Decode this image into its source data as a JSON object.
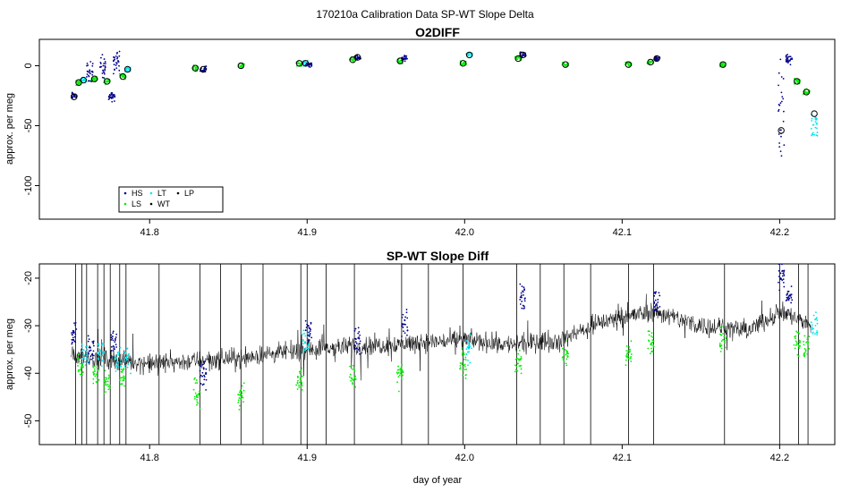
{
  "figure": {
    "title": "170210a   Calibration Data SP-WT Slope Delta",
    "xlabel": "day of year"
  },
  "colors": {
    "HS": "#00008b",
    "LS": "#00ee00",
    "LT": "#00e5ee",
    "WT": "#000000",
    "LP": "#000000",
    "mean_marker": "#000000",
    "trace": "#000000"
  },
  "chart_data": [
    {
      "type": "scatter",
      "title": "O2DIFF",
      "xlabel": "",
      "ylabel": "approx. per meg",
      "xlim": [
        41.73,
        42.235
      ],
      "ylim": [
        -128,
        22
      ],
      "xticks": [
        41.8,
        41.9,
        42.0,
        42.1,
        42.2
      ],
      "xtick_labels": [
        "41.8",
        "41.9",
        "42.0",
        "42.1",
        "42.2"
      ],
      "yticks": [
        0,
        -50,
        -100
      ],
      "ytick_labels": [
        "0",
        "-50",
        "-100"
      ],
      "grid": false,
      "legend": {
        "placement": "bottom-left",
        "entries": [
          {
            "label": "HS",
            "key": "HS"
          },
          {
            "label": "LS",
            "key": "LS"
          },
          {
            "label": "LT",
            "key": "LT"
          },
          {
            "label": "WT",
            "key": "WT"
          },
          {
            "label": "LP",
            "key": "LP"
          }
        ]
      },
      "clusters": [
        {
          "x": 41.752,
          "y": -25,
          "series": "HS",
          "spread": 4
        },
        {
          "x": 41.755,
          "y": -14,
          "series": "LS",
          "spread": 3
        },
        {
          "x": 41.758,
          "y": -12,
          "series": "LT",
          "spread": 3
        },
        {
          "x": 41.762,
          "y": -5,
          "series": "HS",
          "spread": 12
        },
        {
          "x": 41.765,
          "y": -11,
          "series": "LS",
          "spread": 3
        },
        {
          "x": 41.77,
          "y": -2,
          "series": "HS",
          "spread": 14
        },
        {
          "x": 41.773,
          "y": -13,
          "series": "LS",
          "spread": 3
        },
        {
          "x": 41.776,
          "y": -25,
          "series": "HS",
          "spread": 6
        },
        {
          "x": 41.779,
          "y": 3,
          "series": "HS",
          "spread": 14
        },
        {
          "x": 41.783,
          "y": -9,
          "series": "LS",
          "spread": 4
        },
        {
          "x": 41.786,
          "y": -3,
          "series": "LT",
          "spread": 3
        },
        {
          "x": 41.829,
          "y": -2,
          "series": "LS",
          "spread": 3
        },
        {
          "x": 41.834,
          "y": -3,
          "series": "HS",
          "spread": 4
        },
        {
          "x": 41.858,
          "y": 0,
          "series": "LS",
          "spread": 3
        },
        {
          "x": 41.895,
          "y": 2,
          "series": "LS",
          "spread": 3
        },
        {
          "x": 41.899,
          "y": 2,
          "series": "LT",
          "spread": 3
        },
        {
          "x": 41.901,
          "y": 1,
          "series": "HS",
          "spread": 3
        },
        {
          "x": 41.929,
          "y": 5,
          "series": "LS",
          "spread": 3
        },
        {
          "x": 41.932,
          "y": 7,
          "series": "HS",
          "spread": 3
        },
        {
          "x": 41.959,
          "y": 4,
          "series": "LS",
          "spread": 3
        },
        {
          "x": 41.962,
          "y": 6,
          "series": "HS",
          "spread": 3
        },
        {
          "x": 41.999,
          "y": 2,
          "series": "LS",
          "spread": 3
        },
        {
          "x": 42.003,
          "y": 9,
          "series": "LT",
          "spread": 3
        },
        {
          "x": 42.034,
          "y": 6,
          "series": "LS",
          "spread": 3
        },
        {
          "x": 42.037,
          "y": 9,
          "series": "HS",
          "spread": 3
        },
        {
          "x": 42.064,
          "y": 1,
          "series": "LS",
          "spread": 3
        },
        {
          "x": 42.104,
          "y": 1,
          "series": "LS",
          "spread": 3
        },
        {
          "x": 42.118,
          "y": 3,
          "series": "LS",
          "spread": 3
        },
        {
          "x": 42.122,
          "y": 6,
          "series": "HS",
          "spread": 3
        },
        {
          "x": 42.164,
          "y": 1,
          "series": "LS",
          "spread": 3
        },
        {
          "x": 42.201,
          "y": -40,
          "series": "HS",
          "spread": 70
        },
        {
          "x": 42.206,
          "y": 5,
          "series": "HS",
          "spread": 6
        },
        {
          "x": 42.211,
          "y": -13,
          "series": "LS",
          "spread": 4
        },
        {
          "x": 42.217,
          "y": -22,
          "series": "LS",
          "spread": 3
        },
        {
          "x": 42.222,
          "y": -50,
          "series": "LT",
          "spread": 25
        }
      ],
      "means": [
        {
          "x": 41.752,
          "y": -26
        },
        {
          "x": 41.755,
          "y": -14
        },
        {
          "x": 41.758,
          "y": -12
        },
        {
          "x": 41.765,
          "y": -11
        },
        {
          "x": 41.773,
          "y": -13
        },
        {
          "x": 41.783,
          "y": -9
        },
        {
          "x": 41.786,
          "y": -3
        },
        {
          "x": 41.829,
          "y": -2
        },
        {
          "x": 41.834,
          "y": -3
        },
        {
          "x": 41.858,
          "y": 0
        },
        {
          "x": 41.895,
          "y": 2
        },
        {
          "x": 41.899,
          "y": 2
        },
        {
          "x": 41.929,
          "y": 5
        },
        {
          "x": 41.932,
          "y": 7
        },
        {
          "x": 41.959,
          "y": 4
        },
        {
          "x": 41.999,
          "y": 2
        },
        {
          "x": 42.003,
          "y": 9
        },
        {
          "x": 42.034,
          "y": 6
        },
        {
          "x": 42.037,
          "y": 9
        },
        {
          "x": 42.064,
          "y": 1
        },
        {
          "x": 42.104,
          "y": 1
        },
        {
          "x": 42.118,
          "y": 3
        },
        {
          "x": 42.122,
          "y": 6
        },
        {
          "x": 42.164,
          "y": 1
        },
        {
          "x": 42.201,
          "y": -54
        },
        {
          "x": 42.211,
          "y": -13
        },
        {
          "x": 42.217,
          "y": -22
        },
        {
          "x": 42.222,
          "y": -40
        }
      ]
    },
    {
      "type": "line",
      "title": "SP-WT Slope Diff",
      "xlabel": "day of year",
      "ylabel": "approx. per meg",
      "xlim": [
        41.73,
        42.235
      ],
      "ylim": [
        -55,
        -17
      ],
      "xticks": [
        41.8,
        41.9,
        42.0,
        42.1,
        42.2
      ],
      "xtick_labels": [
        "41.8",
        "41.9",
        "42.0",
        "42.1",
        "42.2"
      ],
      "yticks": [
        -20,
        -30,
        -40,
        -50
      ],
      "ytick_labels": [
        "-20",
        "-30",
        "-40",
        "-50"
      ],
      "grid": false,
      "trace_baseline": [
        [
          41.75,
          -36
        ],
        [
          41.8,
          -38
        ],
        [
          41.85,
          -37
        ],
        [
          41.9,
          -35
        ],
        [
          41.95,
          -34
        ],
        [
          42.0,
          -33
        ],
        [
          42.03,
          -34
        ],
        [
          42.06,
          -33
        ],
        [
          42.09,
          -29
        ],
        [
          42.12,
          -27
        ],
        [
          42.15,
          -30
        ],
        [
          42.18,
          -31
        ],
        [
          42.2,
          -27
        ],
        [
          42.22,
          -30
        ]
      ],
      "trace_noise": 3,
      "spikes_x": [
        41.753,
        41.757,
        41.76,
        41.767,
        41.771,
        41.775,
        41.781,
        41.785,
        41.806,
        41.832,
        41.845,
        41.858,
        41.872,
        41.896,
        41.9,
        41.912,
        41.93,
        41.96,
        41.977,
        41.999,
        42.033,
        42.048,
        42.063,
        42.08,
        42.104,
        42.12,
        42.165,
        42.2,
        42.212,
        42.218
      ],
      "cal_segments": [
        {
          "x": 41.752,
          "y": -32,
          "series": "HS"
        },
        {
          "x": 41.756,
          "y": -38,
          "series": "LS"
        },
        {
          "x": 41.759,
          "y": -36,
          "series": "LT"
        },
        {
          "x": 41.763,
          "y": -35,
          "series": "HS"
        },
        {
          "x": 41.766,
          "y": -40,
          "series": "LS"
        },
        {
          "x": 41.769,
          "y": -36,
          "series": "LT"
        },
        {
          "x": 41.773,
          "y": -42,
          "series": "LS"
        },
        {
          "x": 41.777,
          "y": -34,
          "series": "HS"
        },
        {
          "x": 41.78,
          "y": -37,
          "series": "LT"
        },
        {
          "x": 41.783,
          "y": -41,
          "series": "LS"
        },
        {
          "x": 41.786,
          "y": -37,
          "series": "LT"
        },
        {
          "x": 41.83,
          "y": -44,
          "series": "LS"
        },
        {
          "x": 41.834,
          "y": -40,
          "series": "HS"
        },
        {
          "x": 41.858,
          "y": -45,
          "series": "LS"
        },
        {
          "x": 41.895,
          "y": -41,
          "series": "LS"
        },
        {
          "x": 41.899,
          "y": -34,
          "series": "LT"
        },
        {
          "x": 41.901,
          "y": -31,
          "series": "HS"
        },
        {
          "x": 41.929,
          "y": -41,
          "series": "LS"
        },
        {
          "x": 41.932,
          "y": -33,
          "series": "HS"
        },
        {
          "x": 41.959,
          "y": -40,
          "series": "LS"
        },
        {
          "x": 41.962,
          "y": -30,
          "series": "HS"
        },
        {
          "x": 41.999,
          "y": -38,
          "series": "LS"
        },
        {
          "x": 42.003,
          "y": -35,
          "series": "LT"
        },
        {
          "x": 42.034,
          "y": -38,
          "series": "LS"
        },
        {
          "x": 42.037,
          "y": -24,
          "series": "HS"
        },
        {
          "x": 42.064,
          "y": -36,
          "series": "LS"
        },
        {
          "x": 42.104,
          "y": -36,
          "series": "LS"
        },
        {
          "x": 42.118,
          "y": -33,
          "series": "LS"
        },
        {
          "x": 42.122,
          "y": -25,
          "series": "HS"
        },
        {
          "x": 42.164,
          "y": -33,
          "series": "LS"
        },
        {
          "x": 42.201,
          "y": -20,
          "series": "HS"
        },
        {
          "x": 42.206,
          "y": -24,
          "series": "HS"
        },
        {
          "x": 42.211,
          "y": -33,
          "series": "LS"
        },
        {
          "x": 42.217,
          "y": -34,
          "series": "LS"
        },
        {
          "x": 42.222,
          "y": -30,
          "series": "LT"
        }
      ]
    }
  ]
}
